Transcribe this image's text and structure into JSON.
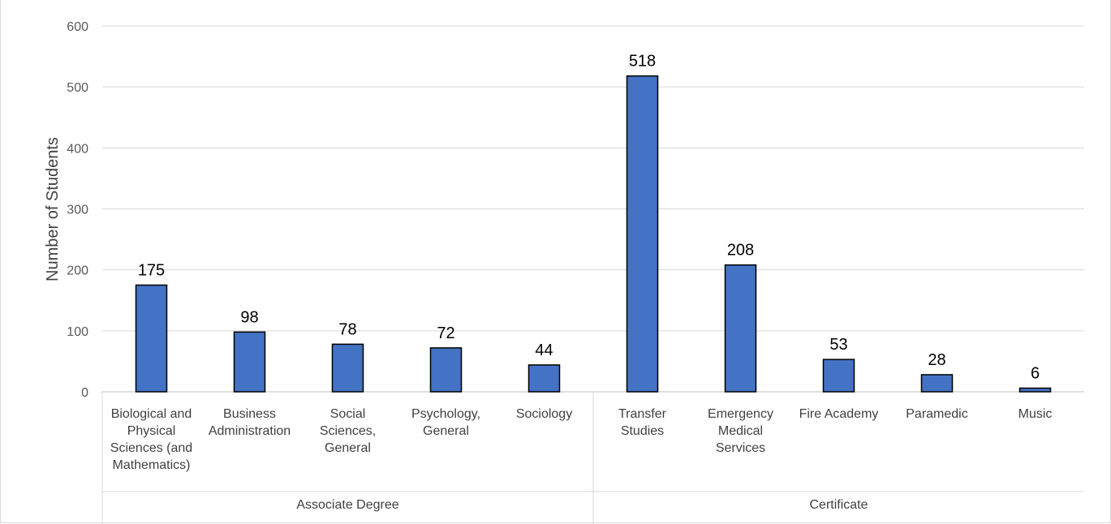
{
  "colors": {
    "bar_fill": "#4472C4",
    "bar_stroke": "#000000",
    "grid": "#d9d9d9",
    "axis_text": "#595959"
  },
  "chart_data": {
    "type": "bar",
    "title": "",
    "xlabel": "",
    "ylabel": "Number of Students",
    "ylim": [
      0,
      600
    ],
    "yticks": [
      0,
      100,
      200,
      300,
      400,
      500,
      600
    ],
    "grid": true,
    "legend": "none",
    "categories": [
      [
        "Biological and",
        "Physical",
        "Sciences (and",
        "Mathematics)"
      ],
      [
        "Business",
        "Administration"
      ],
      [
        "Social",
        "Sciences,",
        "General"
      ],
      [
        "Psychology,",
        "General"
      ],
      [
        "Sociology"
      ],
      [
        "Transfer",
        "Studies"
      ],
      [
        "Emergency",
        "Medical",
        "Services"
      ],
      [
        "Fire Academy"
      ],
      [
        "Paramedic"
      ],
      [
        "Music"
      ]
    ],
    "values": [
      175,
      98,
      78,
      72,
      44,
      518,
      208,
      53,
      28,
      6
    ],
    "groups": [
      {
        "label": "Associate Degree",
        "start": 0,
        "count": 5
      },
      {
        "label": "Certificate",
        "start": 5,
        "count": 5
      }
    ]
  }
}
